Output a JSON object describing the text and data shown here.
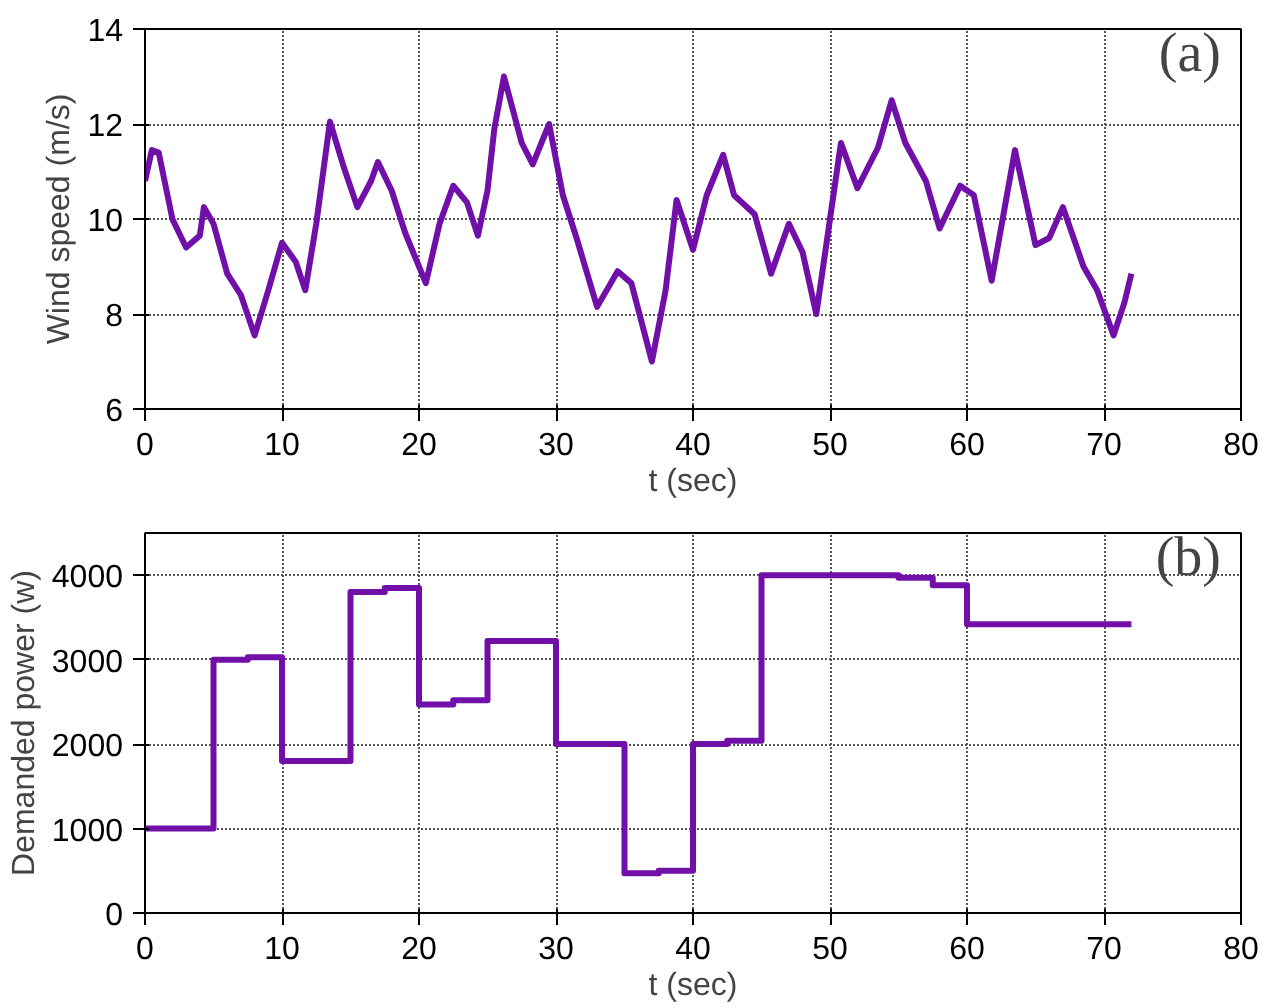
{
  "chart_data": [
    {
      "type": "line",
      "xlabel": "t (sec)",
      "ylabel": "Wind speed (m/s)",
      "annotations": [
        "(a)"
      ],
      "xlim": [
        0,
        80
      ],
      "xticks": [
        0,
        10,
        20,
        30,
        40,
        50,
        60,
        70,
        80
      ],
      "ylim": [
        6,
        14
      ],
      "yticks": [
        6,
        8,
        10,
        12,
        14
      ],
      "grid": true,
      "x": [
        0,
        0.5,
        1,
        2,
        3,
        4,
        4.3,
        5,
        6,
        7,
        8,
        9,
        10,
        11,
        11.7,
        12.5,
        13.5,
        14.5,
        15.5,
        16.5,
        17,
        18,
        19,
        20.5,
        21.5,
        22.5,
        23.5,
        24.3,
        25,
        25.5,
        26.2,
        27.5,
        28.3,
        29.5,
        30.5,
        31.5,
        33,
        34.5,
        35.5,
        37,
        38,
        38.8,
        40,
        41,
        42.2,
        43,
        44.5,
        45.7,
        47,
        48,
        49,
        50,
        50.8,
        52,
        53.5,
        54.5,
        55.5,
        57,
        58,
        59.5,
        60.5,
        61.8,
        63.5,
        65,
        66,
        67,
        68.5,
        69.5,
        70.7,
        71.5,
        72
      ],
      "series": [
        {
          "color": "#7010a8",
          "values": [
            10.8,
            11.45,
            11.4,
            10.0,
            9.4,
            9.65,
            10.25,
            9.9,
            8.85,
            8.4,
            7.55,
            8.5,
            9.5,
            9.1,
            8.5,
            9.9,
            12.05,
            11.1,
            10.25,
            10.8,
            11.2,
            10.6,
            9.7,
            8.65,
            9.9,
            10.7,
            10.35,
            9.65,
            10.6,
            11.9,
            13.0,
            11.6,
            11.15,
            12.0,
            10.5,
            9.6,
            8.15,
            8.9,
            8.65,
            7.0,
            8.5,
            10.4,
            9.35,
            10.5,
            11.35,
            10.5,
            10.1,
            8.85,
            9.9,
            9.3,
            8.0,
            10.0,
            11.6,
            10.65,
            11.5,
            12.5,
            11.6,
            10.8,
            9.8,
            10.7,
            10.5,
            8.7,
            11.45,
            9.45,
            9.6,
            10.25,
            9.0,
            8.5,
            7.55,
            8.25,
            8.85
          ]
        }
      ]
    },
    {
      "type": "step",
      "xlabel": "t (sec)",
      "ylabel": "Demanded power (w)",
      "annotations": [
        "(b)"
      ],
      "xlim": [
        0,
        80
      ],
      "xticks": [
        0,
        10,
        20,
        30,
        40,
        50,
        60,
        70,
        80
      ],
      "ylim": [
        0,
        4500
      ],
      "yticks": [
        0,
        1000,
        2000,
        3000,
        4000
      ],
      "grid": true,
      "x": [
        0,
        5,
        7.5,
        10,
        15,
        17.5,
        20,
        22.5,
        25,
        30,
        35,
        37.5,
        40,
        42.5,
        45,
        55,
        57.5,
        60,
        72
      ],
      "series": [
        {
          "color": "#7010a8",
          "values": [
            1000,
            3000,
            3030,
            1800,
            3800,
            3850,
            2470,
            2520,
            3220,
            2000,
            470,
            500,
            2000,
            2040,
            4000,
            3970,
            3880,
            3420,
            3420
          ]
        }
      ]
    }
  ]
}
